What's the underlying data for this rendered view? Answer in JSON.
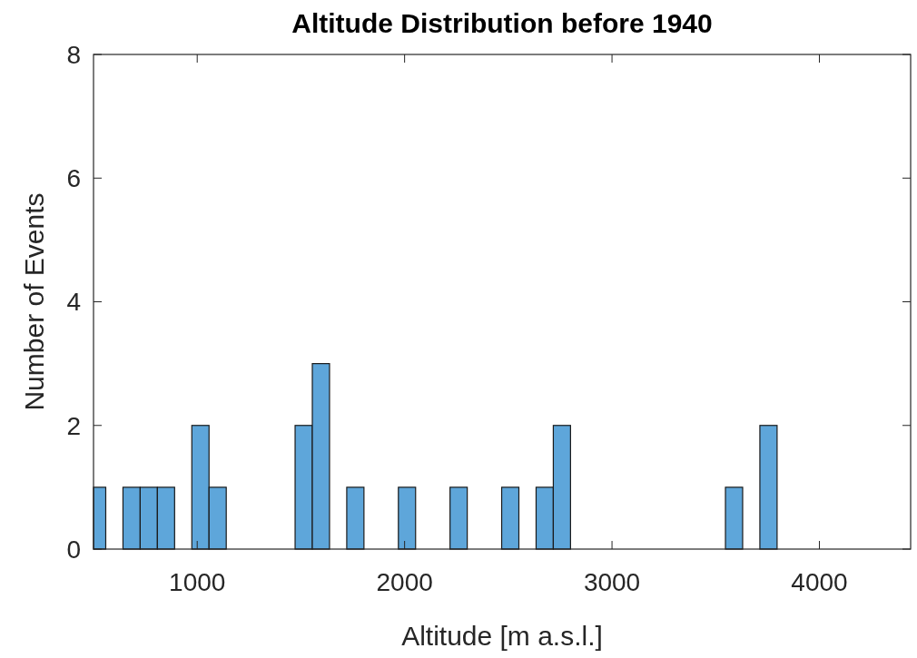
{
  "chart_data": {
    "type": "histogram",
    "title": "Altitude Distribution before 1940",
    "xlabel": "Altitude [m a.s.l.]",
    "ylabel": "Number of Events",
    "bins": [
      500,
      559,
      642,
      725,
      808,
      891,
      974,
      1057,
      1140,
      1472,
      1555,
      1638,
      1721,
      1804,
      1970,
      2053,
      2219,
      2302,
      2468,
      2551,
      2634,
      2717,
      2800,
      3547,
      3630,
      3713,
      3796
    ],
    "values": [
      1,
      0,
      1,
      1,
      1,
      0,
      2,
      1,
      0,
      2,
      3,
      0,
      1,
      0,
      1,
      0,
      1,
      0,
      1,
      0,
      1,
      2,
      0,
      1,
      0,
      2
    ],
    "color": "#5ea6da",
    "xlim": [
      500,
      4440
    ],
    "xticks": [
      1000,
      2000,
      3000,
      4000
    ],
    "ylim": [
      0,
      8
    ],
    "yticks": [
      0,
      2,
      4,
      6,
      8
    ],
    "grid": false,
    "legend": false
  }
}
